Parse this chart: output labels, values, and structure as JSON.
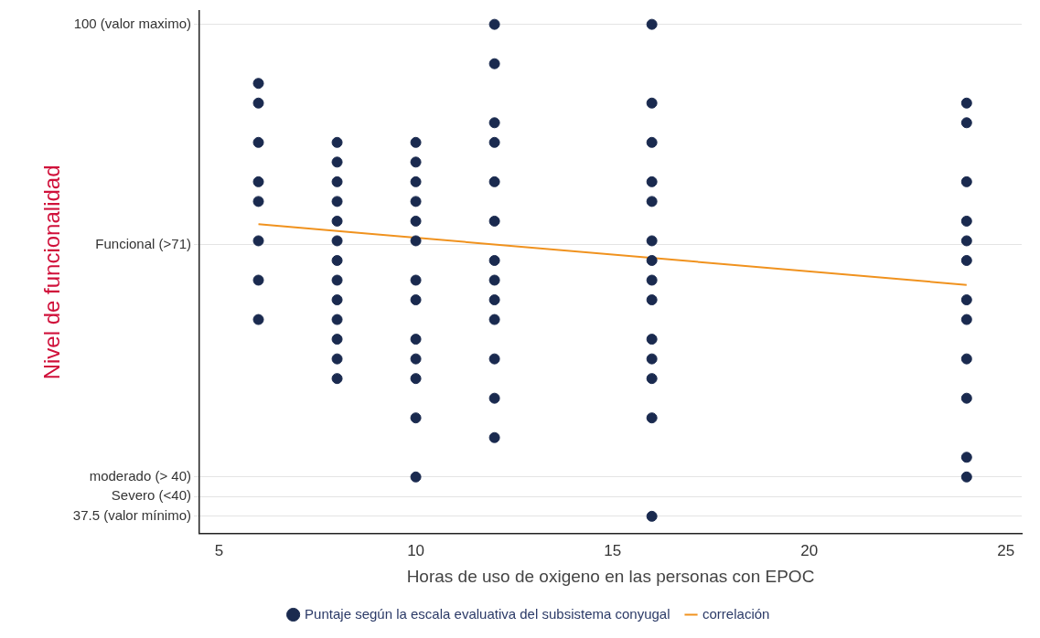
{
  "chart_data": {
    "type": "scatter",
    "xlabel": "Horas de uso de oxigeno en las personas con EPOC",
    "ylabel": "Nivel de funcionalidad",
    "xlim": [
      4.5,
      25.4
    ],
    "xticks": [
      5,
      10,
      15,
      20,
      25
    ],
    "ylim": [
      35.3,
      101.7
    ],
    "yticks": [
      {
        "value": 37.5,
        "label": "37.5 (valor mínimo)"
      },
      {
        "value": 40,
        "label": "Severo (<40)"
      },
      {
        "value": 42.5,
        "label": "moderado (> 40)"
      },
      {
        "value": 72,
        "label": "Funcional (>71)"
      },
      {
        "value": 100,
        "label": "100 (valor maximo)"
      }
    ],
    "grid": "y",
    "legend": "bottom",
    "series": [
      {
        "name": "Puntaje según la escala evaluativa del subsistema conyugal",
        "color": "#1a2a4f",
        "marker": "circle",
        "x": [
          6,
          6,
          6,
          6,
          6,
          6,
          6,
          6,
          8,
          8,
          8,
          8,
          8,
          8,
          8,
          8,
          8,
          8,
          8,
          8,
          8,
          10,
          10,
          10,
          10,
          10,
          10,
          10,
          10,
          10,
          10,
          10,
          10,
          10,
          12,
          12,
          12,
          12,
          12,
          12,
          12,
          12,
          12,
          12,
          12,
          12,
          12,
          16,
          16,
          16,
          16,
          16,
          16,
          16,
          16,
          16,
          16,
          16,
          16,
          16,
          16,
          24,
          24,
          24,
          24,
          24,
          24,
          24,
          24,
          24,
          24,
          24,
          24
        ],
        "values": [
          92.5,
          90,
          85,
          80,
          77.5,
          72.5,
          67.5,
          62.5,
          85,
          82.5,
          80,
          77.5,
          75,
          72.5,
          70,
          67.5,
          65,
          62.5,
          60,
          57.5,
          55,
          85,
          82.5,
          80,
          77.5,
          75,
          72.5,
          67.5,
          65,
          60,
          57.5,
          55,
          50,
          42.5,
          100,
          95,
          87.5,
          85,
          80,
          75,
          70,
          67.5,
          65,
          62.5,
          57.5,
          52.5,
          47.5,
          100,
          90,
          85,
          80,
          77.5,
          72.5,
          70,
          67.5,
          65,
          60,
          57.5,
          55,
          50,
          37.5,
          90,
          87.5,
          80,
          75,
          72.5,
          70,
          65,
          62.5,
          57.5,
          52.5,
          45,
          42.5
        ]
      },
      {
        "name": "correlación",
        "color": "#f0921e",
        "type": "line",
        "x": [
          6,
          24
        ],
        "values": [
          74.6,
          66.9
        ]
      }
    ]
  }
}
